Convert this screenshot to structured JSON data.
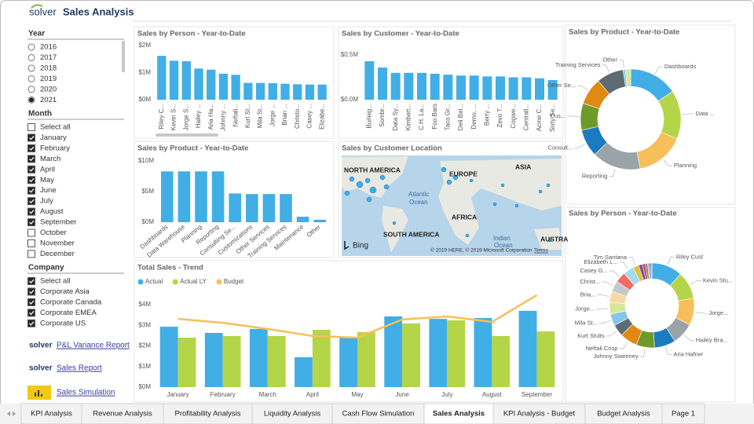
{
  "header": {
    "logo": "solver",
    "title": "Sales Analysis"
  },
  "filters": [
    {
      "title": "Year",
      "kind": "radio",
      "items": [
        {
          "label": "2016",
          "checked": false
        },
        {
          "label": "2017",
          "checked": false
        },
        {
          "label": "2018",
          "checked": false
        },
        {
          "label": "2019",
          "checked": false
        },
        {
          "label": "2020",
          "checked": false
        },
        {
          "label": "2021",
          "checked": true
        }
      ]
    },
    {
      "title": "Month",
      "kind": "checkbox",
      "items": [
        {
          "label": "Select all",
          "checked": false
        },
        {
          "label": "January",
          "checked": true
        },
        {
          "label": "February",
          "checked": true
        },
        {
          "label": "March",
          "checked": true
        },
        {
          "label": "April",
          "checked": true
        },
        {
          "label": "May",
          "checked": true
        },
        {
          "label": "June",
          "checked": true
        },
        {
          "label": "July",
          "checked": true
        },
        {
          "label": "August",
          "checked": true
        },
        {
          "label": "September",
          "checked": true
        },
        {
          "label": "October",
          "checked": false
        },
        {
          "label": "November",
          "checked": false
        },
        {
          "label": "December",
          "checked": false
        }
      ]
    },
    {
      "title": "Company",
      "kind": "checkbox",
      "items": [
        {
          "label": "Select all",
          "checked": true
        },
        {
          "label": "Corporate Asia",
          "checked": true
        },
        {
          "label": "Corporate Canada",
          "checked": true
        },
        {
          "label": "Corporate EMEA",
          "checked": true
        },
        {
          "label": "Corporate US",
          "checked": true
        }
      ]
    }
  ],
  "links": [
    {
      "logo": "solver",
      "label": "P&L Variance Report"
    },
    {
      "logo": "solver",
      "label": "Sales Report"
    },
    {
      "label": "Sales Simulation"
    }
  ],
  "map": {
    "title": "Sales by Customer Location",
    "labels": [
      "NORTH AMERICA",
      "EUROPE",
      "ASIA",
      "Atlantic",
      "Ocean",
      "AFRICA",
      "SOUTH AMERICA",
      "Indian",
      "Ocean",
      "AUSTRA"
    ],
    "brand": "Bing",
    "copyright": "© 2019 HERE, © 2019 Microsoft Corporation",
    "terms": "Terms"
  },
  "tabs": {
    "items": [
      "KPI Analysis",
      "Revenue Analysis",
      "Profitability Analysis",
      "Liquidity Analysis",
      "Cash Flow Simulation",
      "Sales Analysis",
      "KPI Analysis - Budget",
      "Budget Analysis",
      "Page 1"
    ],
    "active": 5
  },
  "chart_data": [
    {
      "type": "bar",
      "title": "Sales by Person  - Year-to-Date",
      "color": "#41aee6",
      "categories": [
        "Riley C...",
        "Kevin S...",
        "Jorge S...",
        "Hailey ...",
        "Aria Ha...",
        "Johnny ...",
        "Neftali...",
        "Kurt St...",
        "Mila St...",
        "Jorge ...",
        "Brian ...",
        "Christo...",
        "Casey ...",
        "Elizabe..."
      ],
      "values": [
        1620000,
        1440000,
        1420000,
        1150000,
        1110000,
        960000,
        920000,
        620000,
        620000,
        610000,
        590000,
        570000,
        560000,
        560000
      ],
      "ylim": [
        0,
        2000000
      ],
      "yticks": [
        {
          "value": 0,
          "label": "$0M"
        },
        {
          "value": 1000000,
          "label": "$1M"
        },
        {
          "value": 2000000,
          "label": "$2M"
        }
      ]
    },
    {
      "type": "bar",
      "title": "Sales by Customer - Year-to-Date",
      "color": "#41aee6",
      "categories": [
        "Burleig...",
        "Sombr...",
        "Data Sy...",
        "Kimbert...",
        "C.H. La...",
        "Foo Bars",
        "Taco Gr...",
        "Deli Bel...",
        "Demo, ...",
        "Berry ...",
        "Zevo T...",
        "Cogwe...",
        "Centrall...",
        "Acme C...",
        "Sixty Se..."
      ],
      "values": [
        430000,
        360000,
        300000,
        300000,
        300000,
        290000,
        280000,
        270000,
        270000,
        260000,
        260000,
        250000,
        250000,
        240000,
        220000
      ],
      "ylim": [
        0,
        600000
      ],
      "yticks": [
        {
          "value": 0,
          "label": "$0.0M"
        },
        {
          "value": 500000,
          "label": "$0.5M"
        }
      ]
    },
    {
      "type": "bar",
      "title": "Sales by Product - Year-to-Date",
      "color": "#41aee6",
      "categories": [
        "Dashboards",
        "Data Warehouse",
        "Planning",
        "Reporting",
        "Consulting Se...",
        "Customizations",
        "Other Services",
        "Training Services",
        "Maintenance",
        "Other"
      ],
      "values": [
        8300000,
        8300000,
        8300000,
        8300000,
        4700000,
        4600000,
        4600000,
        4600000,
        900000,
        400000
      ],
      "ylim": [
        0,
        10000000
      ],
      "yticks": [
        {
          "value": 0,
          "label": "$0M"
        },
        {
          "value": 5000000,
          "label": "$5M"
        },
        {
          "value": 10000000,
          "label": "$10M"
        }
      ]
    },
    {
      "type": "combo",
      "title": "Total Sales - Trend",
      "categories": [
        "January",
        "February",
        "March",
        "April",
        "May",
        "June",
        "July",
        "August",
        "September"
      ],
      "series": [
        {
          "name": "Actual",
          "type": "bar",
          "color": "#41aee6",
          "values": [
            2930000,
            2630000,
            2820000,
            1450000,
            2400000,
            3430000,
            3310000,
            3350000,
            3700000
          ]
        },
        {
          "name": "Actual LY",
          "type": "bar",
          "color": "#b5d548",
          "values": [
            2400000,
            2480000,
            2480000,
            2780000,
            2670000,
            3090000,
            3240000,
            2480000,
            2700000
          ]
        },
        {
          "name": "Budget",
          "type": "line",
          "color": "#f7bf5a",
          "values": [
            3310000,
            3120000,
            2820000,
            2480000,
            2400000,
            3280000,
            3430000,
            3160000,
            4460000
          ]
        }
      ],
      "ylim": [
        0,
        4600000
      ],
      "yticks": [
        {
          "value": 0,
          "label": "$0M"
        },
        {
          "value": 1000000,
          "label": "$1M"
        },
        {
          "value": 2000000,
          "label": "$2M"
        },
        {
          "value": 3000000,
          "label": "$3M"
        },
        {
          "value": 4000000,
          "label": "$4M"
        }
      ]
    },
    {
      "type": "donut",
      "title": "Sales by Product - Year-to-Date",
      "categories": [
        "Dashboards",
        "Data ...",
        "Planning",
        "Reporting",
        "Consult...",
        "Cus...",
        "Other Se...",
        "Training Services",
        "Other",
        null
      ],
      "values": [
        8300000,
        8300000,
        8300000,
        8300000,
        4700000,
        4600000,
        4600000,
        4600000,
        400000,
        900000
      ],
      "colors": [
        "#41aee6",
        "#b5d548",
        "#f7bf5a",
        "#9aa3a8",
        "#1c7bbf",
        "#6f9a2a",
        "#e08a13",
        "#5f6b73",
        "#85c7ea",
        "#d5e89a"
      ]
    },
    {
      "type": "donut",
      "title": "Sales by Person  - Year-to-Date",
      "categories": [
        "Riley Cust",
        "Kevin Stu...",
        "Jorge...",
        "Hailey Bra...",
        "Aria Hafner",
        "Johnny Sweeney",
        "Neftali Crisp",
        "Kurt Stults",
        "Mila St...",
        "Jorge...",
        "Bria...",
        "Christ...",
        "Casey G...",
        "Elizabeth L...",
        "Tim Santana",
        null,
        null,
        null,
        null,
        null,
        null
      ],
      "values": [
        1620000,
        1440000,
        1420000,
        1150000,
        1110000,
        960000,
        920000,
        620000,
        620000,
        610000,
        590000,
        570000,
        560000,
        560000,
        300000,
        200000,
        150000,
        120000,
        100000,
        80000,
        50000
      ],
      "colors": [
        "#41aee6",
        "#b5d548",
        "#f7bf5a",
        "#9aa3a8",
        "#1c7bbf",
        "#6f9a2a",
        "#e08a13",
        "#5f6b73",
        "#85c7ea",
        "#d5e89a",
        "#f9d9a3",
        "#c4c9cc",
        "#f26c64",
        "#a6dbee",
        "#e0c23a",
        "#7b4fa0",
        "#d0443b",
        "#3b9b8a",
        "#f08fc0",
        "#4a4a8a",
        "#9fbb3a"
      ]
    }
  ]
}
